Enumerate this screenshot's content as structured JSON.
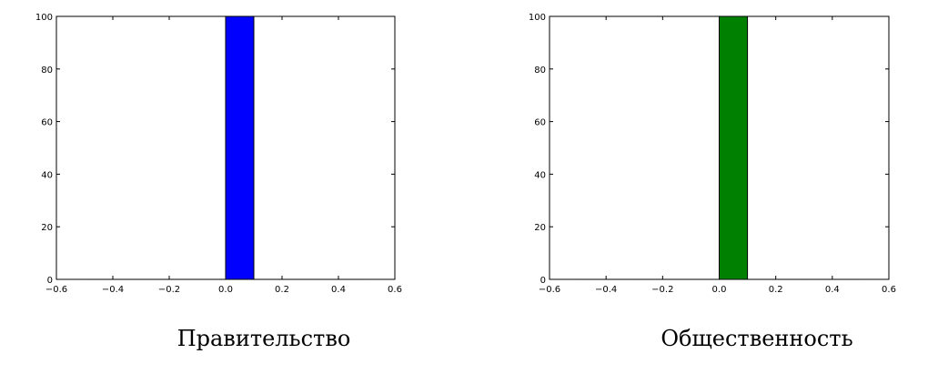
{
  "chart_data": [
    {
      "type": "bar",
      "title": "",
      "xlabel": "",
      "ylabel": "",
      "xlim": [
        -0.6,
        0.6
      ],
      "ylim": [
        0,
        100
      ],
      "xticks": [
        "−0.6",
        "−0.4",
        "−0.2",
        "0.0",
        "0.2",
        "0.4",
        "0.6"
      ],
      "yticks": [
        "0",
        "20",
        "40",
        "60",
        "80",
        "100"
      ],
      "bins": [
        {
          "x0": -0.5,
          "x1": -0.4,
          "value": 0
        },
        {
          "x0": -0.4,
          "x1": -0.3,
          "value": 0
        },
        {
          "x0": -0.3,
          "x1": -0.2,
          "value": 0
        },
        {
          "x0": -0.2,
          "x1": -0.1,
          "value": 0
        },
        {
          "x0": -0.1,
          "x1": 0.0,
          "value": 0
        },
        {
          "x0": 0.0,
          "x1": 0.1,
          "value": 100
        },
        {
          "x0": 0.1,
          "x1": 0.2,
          "value": 0
        },
        {
          "x0": 0.2,
          "x1": 0.3,
          "value": 0
        },
        {
          "x0": 0.3,
          "x1": 0.4,
          "value": 0
        },
        {
          "x0": 0.4,
          "x1": 0.5,
          "value": 0
        }
      ],
      "bar_color": "#0000ff",
      "grid": false,
      "caption": "Правительство"
    },
    {
      "type": "bar",
      "title": "",
      "xlabel": "",
      "ylabel": "",
      "xlim": [
        -0.6,
        0.6
      ],
      "ylim": [
        0,
        100
      ],
      "xticks": [
        "−0.6",
        "−0.4",
        "−0.2",
        "0.0",
        "0.2",
        "0.4",
        "0.6"
      ],
      "yticks": [
        "0",
        "20",
        "40",
        "60",
        "80",
        "100"
      ],
      "bins": [
        {
          "x0": -0.5,
          "x1": -0.4,
          "value": 0
        },
        {
          "x0": -0.4,
          "x1": -0.3,
          "value": 0
        },
        {
          "x0": -0.3,
          "x1": -0.2,
          "value": 0
        },
        {
          "x0": -0.2,
          "x1": -0.1,
          "value": 0
        },
        {
          "x0": -0.1,
          "x1": 0.0,
          "value": 0
        },
        {
          "x0": 0.0,
          "x1": 0.1,
          "value": 100
        },
        {
          "x0": 0.1,
          "x1": 0.2,
          "value": 0
        },
        {
          "x0": 0.2,
          "x1": 0.3,
          "value": 0
        },
        {
          "x0": 0.3,
          "x1": 0.4,
          "value": 0
        },
        {
          "x0": 0.4,
          "x1": 0.5,
          "value": 0
        }
      ],
      "bar_color": "#008000",
      "grid": false,
      "caption": "Общественность"
    }
  ]
}
